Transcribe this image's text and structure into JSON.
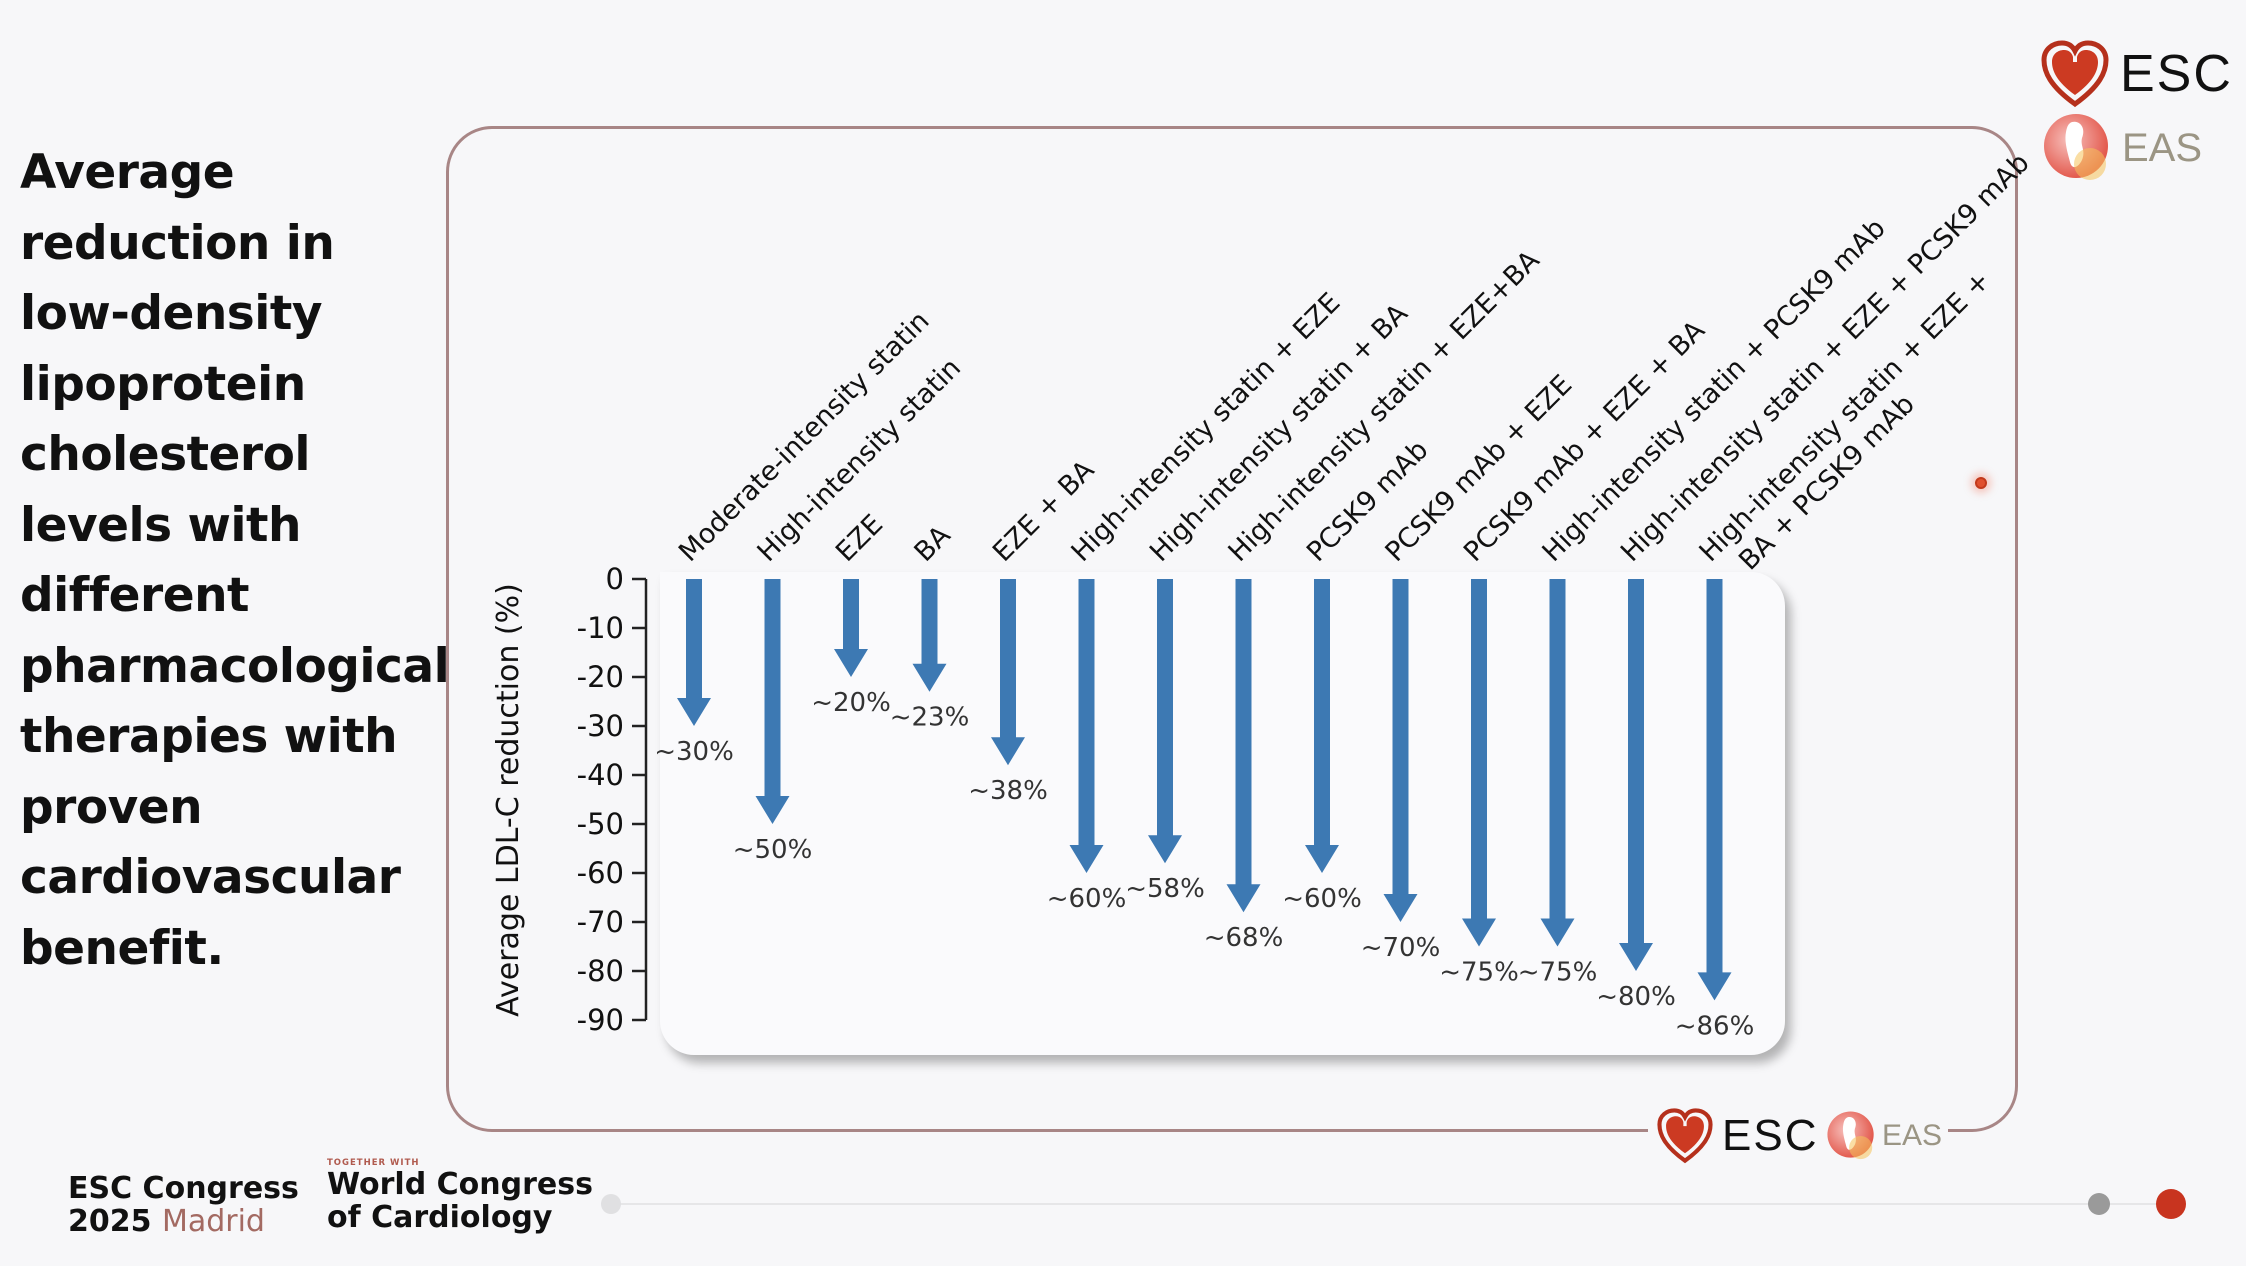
{
  "slide": {
    "title": "Average reduction in low-density lipoprotein cholesterol levels with different pharmacological therapies with proven cardiovascular benefit."
  },
  "logos": {
    "esc": "ESC",
    "eas": "EAS"
  },
  "footer": {
    "congress_line1": "ESC Congress",
    "congress_year": "2025",
    "congress_city": "Madrid",
    "together_tag": "TOGETHER WITH",
    "partner_line1": "World Congress",
    "partner_line2": "of Cardiology"
  },
  "colors": {
    "arrow": "#3d79b3",
    "frame": "#a88686",
    "esc_red": "#c8341f",
    "progress_active": "#c8341f",
    "progress_inactive": "#9a9a9a"
  },
  "chart_data": {
    "type": "bar",
    "orientation": "downward-arrows",
    "title": "",
    "xlabel": "",
    "ylabel": "Average LDL-C reduction (%)",
    "ylim": [
      -90,
      0
    ],
    "yticks": [
      0,
      -10,
      -20,
      -30,
      -40,
      -50,
      -60,
      -70,
      -80,
      -90
    ],
    "grid": false,
    "categories": [
      "Moderate-intensity statin",
      "High-intensity statin",
      "EZE",
      "BA",
      "EZE + BA",
      "High-intensity statin + EZE",
      "High-intensity statin + BA",
      "High-intensity statin + EZE+BA",
      "PCSK9 mAb",
      "PCSK9 mAb + EZE",
      "PCSK9 mAb + EZE + BA",
      "High-intensity statin + PCSK9 mAb",
      "High-intensity statin + EZE + PCSK9 mAb",
      "High-intensity statin + EZE + BA + PCSK9 mAb"
    ],
    "category_label_lines": [
      [
        "Moderate-intensity statin"
      ],
      [
        "High-intensity statin"
      ],
      [
        "EZE"
      ],
      [
        "BA"
      ],
      [
        "EZE + BA"
      ],
      [
        "High-intensity statin + EZE"
      ],
      [
        "High-intensity statin + BA"
      ],
      [
        "High-intensity statin + EZE+BA"
      ],
      [
        "PCSK9 mAb"
      ],
      [
        "PCSK9 mAb + EZE"
      ],
      [
        "PCSK9 mAb + EZE + BA"
      ],
      [
        "High-intensity statin + PCSK9 mAb"
      ],
      [
        "High-intensity statin + EZE + PCSK9 mAb"
      ],
      [
        "High-intensity statin + EZE +",
        "BA + PCSK9 mAb"
      ]
    ],
    "values": [
      -30,
      -50,
      -20,
      -23,
      -38,
      -60,
      -58,
      -68,
      -60,
      -70,
      -75,
      -75,
      -80,
      -86
    ],
    "data_labels": [
      "~30%",
      "~50%",
      "~20%",
      "~23%",
      "~38%",
      "~60%",
      "~58%",
      "~68%",
      "~60%",
      "~70%",
      "~75%",
      "~75%",
      "~80%",
      "~86%"
    ]
  },
  "progress": {
    "current_step": 2,
    "total_steps": 2
  }
}
